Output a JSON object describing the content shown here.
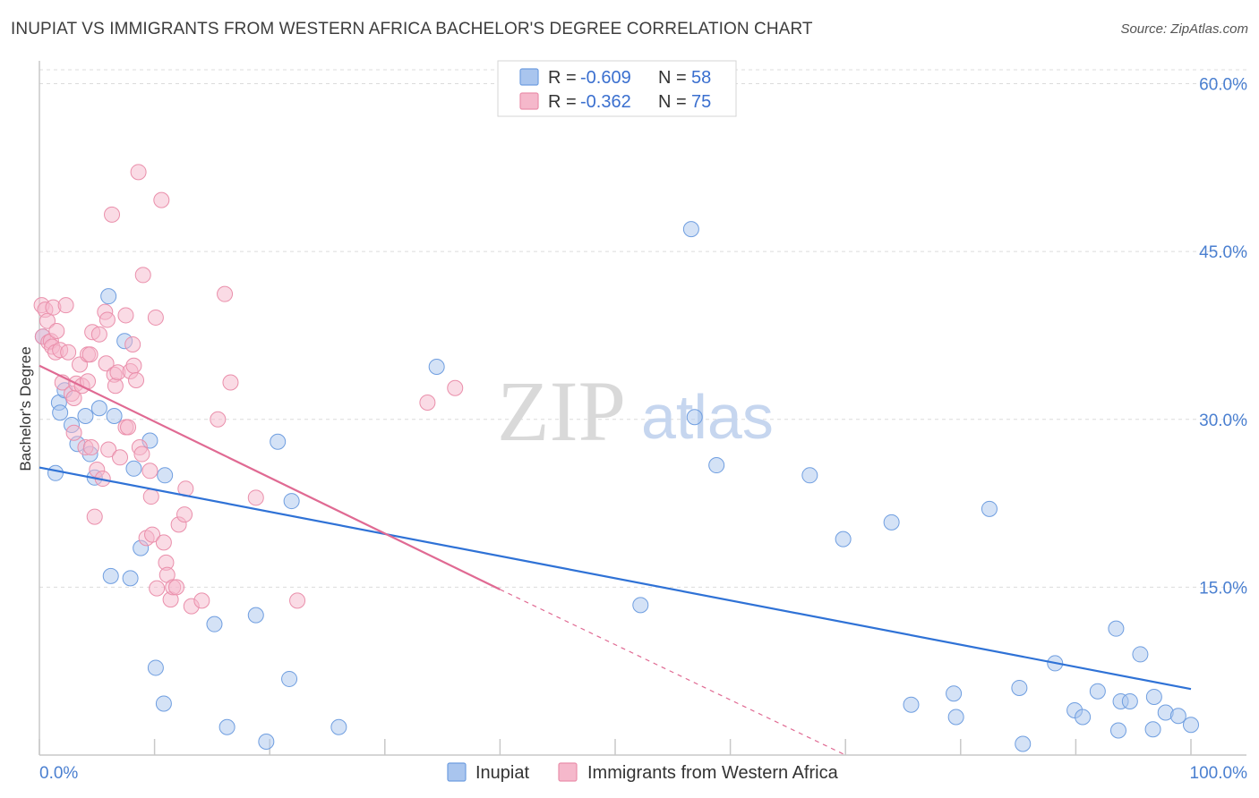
{
  "title": "INUPIAT VS IMMIGRANTS FROM WESTERN AFRICA BACHELOR'S DEGREE CORRELATION CHART",
  "source": "Source: ZipAtlas.com",
  "watermark": {
    "part1": "ZIP",
    "part2": "atlas"
  },
  "legend_top": {
    "rows": [
      {
        "r_label": "R =",
        "r_value": "-0.609",
        "n_label": "N =",
        "n_value": "58",
        "color": "#a9c5ee"
      },
      {
        "r_label": "R =",
        "r_value": "-0.362",
        "n_label": "N =",
        "n_value": "75",
        "color": "#f5b8cb"
      }
    ]
  },
  "legend_bottom": {
    "items": [
      {
        "label": "Inupiat",
        "color": "#a9c5ee"
      },
      {
        "label": "Immigrants from Western Africa",
        "color": "#f5b8cb"
      }
    ]
  },
  "chart_data": {
    "type": "scatter",
    "title": "INUPIAT VS IMMIGRANTS FROM WESTERN AFRICA BACHELOR'S DEGREE CORRELATION CHART",
    "xlabel": "",
    "ylabel": "Bachelor's Degree",
    "xlim": [
      0,
      100
    ],
    "ylim": [
      0,
      63
    ],
    "x_tick_labels": [
      "0.0%",
      "100.0%"
    ],
    "y_ticks": [
      15,
      30,
      45,
      60
    ],
    "y_tick_labels": [
      "15.0%",
      "30.0%",
      "45.0%",
      "60.0%"
    ],
    "grid": true,
    "legend_position": "top-center",
    "series": [
      {
        "name": "Inupiat",
        "color": "#a9c5ee",
        "stroke": "#6f9ee0",
        "trend": {
          "x": [
            0,
            100
          ],
          "y": [
            25.7,
            5.9
          ],
          "color": "#2f72d6"
        },
        "points": [
          [
            0.3,
            37.4
          ],
          [
            1.4,
            25.2
          ],
          [
            1.7,
            31.5
          ],
          [
            1.8,
            30.6
          ],
          [
            2.2,
            32.6
          ],
          [
            2.8,
            29.5
          ],
          [
            3.3,
            27.8
          ],
          [
            4.0,
            30.3
          ],
          [
            4.4,
            26.9
          ],
          [
            4.8,
            24.8
          ],
          [
            5.2,
            31.0
          ],
          [
            6.0,
            41.0
          ],
          [
            6.2,
            16.0
          ],
          [
            6.5,
            30.3
          ],
          [
            7.4,
            37.0
          ],
          [
            7.9,
            15.8
          ],
          [
            8.2,
            25.6
          ],
          [
            8.8,
            18.5
          ],
          [
            9.6,
            28.1
          ],
          [
            10.1,
            7.8
          ],
          [
            10.9,
            25.0
          ],
          [
            10.8,
            4.6
          ],
          [
            15.2,
            11.7
          ],
          [
            16.3,
            2.5
          ],
          [
            18.8,
            12.5
          ],
          [
            19.7,
            1.2
          ],
          [
            20.7,
            28.0
          ],
          [
            21.7,
            6.8
          ],
          [
            21.9,
            22.7
          ],
          [
            26.0,
            2.5
          ],
          [
            34.5,
            34.7
          ],
          [
            52.2,
            13.4
          ],
          [
            56.6,
            47.0
          ],
          [
            56.9,
            30.2
          ],
          [
            58.8,
            25.9
          ],
          [
            66.9,
            25.0
          ],
          [
            69.8,
            19.3
          ],
          [
            74.0,
            20.8
          ],
          [
            75.7,
            4.5
          ],
          [
            79.4,
            5.5
          ],
          [
            79.6,
            3.4
          ],
          [
            82.5,
            22.0
          ],
          [
            85.1,
            6.0
          ],
          [
            85.4,
            1.0
          ],
          [
            88.2,
            8.2
          ],
          [
            89.9,
            4.0
          ],
          [
            90.6,
            3.4
          ],
          [
            91.9,
            5.7
          ],
          [
            93.5,
            11.3
          ],
          [
            93.7,
            2.2
          ],
          [
            93.9,
            4.8
          ],
          [
            94.7,
            4.8
          ],
          [
            95.6,
            9.0
          ],
          [
            96.7,
            2.3
          ],
          [
            96.8,
            5.2
          ],
          [
            97.8,
            3.8
          ],
          [
            98.9,
            3.5
          ],
          [
            100.0,
            2.7
          ]
        ]
      },
      {
        "name": "Immigrants from Western Africa",
        "color": "#f5b8cb",
        "stroke": "#ea8fab",
        "trend": {
          "x": [
            0,
            40
          ],
          "y": [
            34.8,
            14.8
          ],
          "dashed_extension": {
            "x": [
              40,
              70
            ],
            "y": [
              14.8,
              0.0
            ]
          },
          "color": "#e06a93"
        },
        "points": [
          [
            0.2,
            40.2
          ],
          [
            0.3,
            37.4
          ],
          [
            0.5,
            39.8
          ],
          [
            0.7,
            38.8
          ],
          [
            0.8,
            36.9
          ],
          [
            1.0,
            37.0
          ],
          [
            1.1,
            36.5
          ],
          [
            1.2,
            40.0
          ],
          [
            1.4,
            36.0
          ],
          [
            1.5,
            37.9
          ],
          [
            1.8,
            36.2
          ],
          [
            2.0,
            33.3
          ],
          [
            2.3,
            40.2
          ],
          [
            2.5,
            36.0
          ],
          [
            2.8,
            32.3
          ],
          [
            3.0,
            31.9
          ],
          [
            3.2,
            33.2
          ],
          [
            3.0,
            28.8
          ],
          [
            3.5,
            34.9
          ],
          [
            3.7,
            33.0
          ],
          [
            4.0,
            27.5
          ],
          [
            4.2,
            33.4
          ],
          [
            4.2,
            35.8
          ],
          [
            4.4,
            35.8
          ],
          [
            4.5,
            27.5
          ],
          [
            4.6,
            37.8
          ],
          [
            4.8,
            21.3
          ],
          [
            5.0,
            25.5
          ],
          [
            5.2,
            37.6
          ],
          [
            5.5,
            24.7
          ],
          [
            5.7,
            39.6
          ],
          [
            5.8,
            35.0
          ],
          [
            5.9,
            38.9
          ],
          [
            6.0,
            27.3
          ],
          [
            6.3,
            48.3
          ],
          [
            6.5,
            34.0
          ],
          [
            6.6,
            33.0
          ],
          [
            6.8,
            34.2
          ],
          [
            7.0,
            26.6
          ],
          [
            7.5,
            39.3
          ],
          [
            7.5,
            29.3
          ],
          [
            7.7,
            29.3
          ],
          [
            7.9,
            34.3
          ],
          [
            8.1,
            36.7
          ],
          [
            8.2,
            34.8
          ],
          [
            8.4,
            33.5
          ],
          [
            8.6,
            52.1
          ],
          [
            8.7,
            27.5
          ],
          [
            8.9,
            26.9
          ],
          [
            9.0,
            42.9
          ],
          [
            9.3,
            19.4
          ],
          [
            9.6,
            25.4
          ],
          [
            9.7,
            23.1
          ],
          [
            9.8,
            19.7
          ],
          [
            10.1,
            39.1
          ],
          [
            10.2,
            14.9
          ],
          [
            10.6,
            49.6
          ],
          [
            10.8,
            19.0
          ],
          [
            11.0,
            17.2
          ],
          [
            11.1,
            16.1
          ],
          [
            11.4,
            13.9
          ],
          [
            11.6,
            15.0
          ],
          [
            11.9,
            15.0
          ],
          [
            12.1,
            20.6
          ],
          [
            12.6,
            21.5
          ],
          [
            12.7,
            23.8
          ],
          [
            13.2,
            13.3
          ],
          [
            14.1,
            13.8
          ],
          [
            15.5,
            30.0
          ],
          [
            16.1,
            41.2
          ],
          [
            16.6,
            33.3
          ],
          [
            18.8,
            23.0
          ],
          [
            22.4,
            13.8
          ],
          [
            33.7,
            31.5
          ],
          [
            36.1,
            32.8
          ]
        ]
      }
    ]
  }
}
